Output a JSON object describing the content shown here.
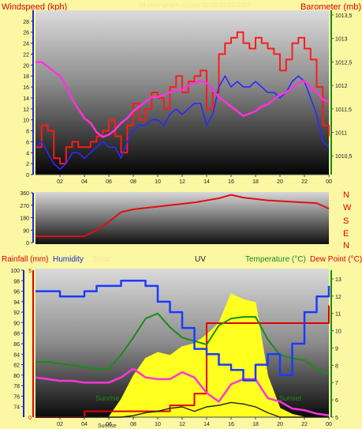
{
  "colors": {
    "background": "#fbf7a3",
    "wind": "#ff1a1a",
    "gust_avg": "#2a2aff",
    "pressure": "#ff33dd",
    "direction": "#e01010",
    "humidity": "#1a3aff",
    "rain": "#e00000",
    "solar": "#ffff20",
    "uv": "#202020",
    "temperature": "#1a8c1a",
    "dewpoint": "#ff33dd",
    "label_dark": "#e00000",
    "label_green": "#1a8c1a",
    "label_faint": "#f2e6a0"
  },
  "header": {
    "windspeed": "Windspeed (kph)",
    "title": "24 Hour graph update 10:00 11/05/2007",
    "barometer": "Barometer (mb)"
  },
  "labels2": {
    "rainfall": "Rainfall (mm)",
    "humidity": "Humidity",
    "solar": "Solar",
    "uv": "UV",
    "temperature": "Temperature (°C)",
    "dewpoint": "Dew Point (°C)",
    "sunrise": "Sunrise",
    "sunset": "Sunset"
  },
  "compass": [
    "N",
    "W",
    "S",
    "E",
    "N"
  ],
  "chart_data": [
    {
      "type": "line",
      "title": "24 Hour graph update 10:00 11/05/2007",
      "ylabel": "Windspeed (kph)",
      "ylabel_right": "Barometer (mb)",
      "xticks": [
        "02",
        "04",
        "06",
        "08",
        "10",
        "12",
        "14",
        "16",
        "18",
        "20",
        "22",
        "00"
      ],
      "ylim": [
        0,
        30
      ],
      "yticks": [
        0,
        2,
        4,
        6,
        8,
        10,
        12,
        14,
        16,
        18,
        20,
        22,
        24,
        26,
        28
      ],
      "ylim_right": [
        1010.1,
        1013.6
      ],
      "yticks_right": [
        1010.5,
        1011,
        1011.5,
        1012,
        1012.5,
        1013,
        1013.5
      ],
      "grid": false,
      "x_hours": [
        0,
        0.5,
        1,
        1.5,
        2,
        2.5,
        3,
        3.5,
        4,
        4.5,
        5,
        5.5,
        6,
        6.5,
        7,
        7.5,
        8,
        8.5,
        9,
        9.5,
        10,
        10.5,
        11,
        11.5,
        12,
        12.5,
        13,
        13.5,
        14,
        14.5,
        15,
        15.5,
        16,
        16.5,
        17,
        17.5,
        18,
        18.5,
        19,
        19.5,
        20,
        20.5,
        21,
        21.5,
        22,
        22.5,
        23,
        23.5,
        24
      ],
      "series": [
        {
          "values": [
            5,
            9,
            8,
            3,
            2,
            5,
            6,
            5,
            5,
            6,
            7,
            8,
            10,
            7,
            4,
            9,
            13,
            10,
            12,
            15,
            14,
            12,
            16,
            18,
            15,
            17,
            18,
            19,
            12,
            15,
            22,
            24,
            25,
            26,
            24,
            23,
            25,
            24,
            23,
            22,
            19,
            21,
            24,
            25,
            23,
            21,
            16,
            9,
            7
          ]
        },
        {
          "values": [
            5,
            6,
            4,
            2,
            1,
            2,
            4,
            4,
            3,
            4,
            5,
            6,
            5,
            5,
            3,
            6,
            8,
            9,
            9,
            10,
            10,
            9,
            11,
            12,
            11,
            12,
            13,
            13,
            9,
            11,
            16,
            18,
            16,
            17,
            16,
            16,
            17,
            16,
            15,
            15,
            14,
            15,
            17,
            18,
            17,
            14,
            11,
            6,
            5
          ]
        },
        {
          "values": [
            1012.5,
            1012.5,
            1012.4,
            1012.3,
            1012.2,
            1012.0,
            1011.7,
            1011.5,
            1011.3,
            1011.2,
            1011.0,
            1010.9,
            1010.95,
            1011.05,
            1011.2,
            1011.3,
            1011.45,
            1011.55,
            1011.65,
            1011.75,
            1011.75,
            1011.8,
            1011.85,
            1011.9,
            1011.9,
            1012.0,
            1012.05,
            1012.1,
            1012.05,
            1011.9,
            1011.75,
            1011.65,
            1011.55,
            1011.45,
            1011.35,
            1011.4,
            1011.45,
            1011.55,
            1011.6,
            1011.7,
            1011.8,
            1011.85,
            1011.95,
            1012.05,
            1012.1,
            1011.95,
            1011.85,
            1011.7,
            1011.65
          ]
        }
      ]
    },
    {
      "type": "line",
      "xticks": [
        "02",
        "04",
        "06",
        "08",
        "10",
        "12",
        "14",
        "16",
        "18",
        "20",
        "22",
        "00"
      ],
      "ylim": [
        0,
        360
      ],
      "yticks": [
        0,
        90,
        180,
        270,
        360
      ],
      "x_hours": [
        0,
        1,
        2,
        3,
        4,
        5,
        6,
        7,
        8,
        9,
        10,
        11,
        12,
        13,
        14,
        15,
        16,
        17,
        18,
        19,
        20,
        21,
        22,
        23,
        24
      ],
      "series": [
        {
          "values": [
            45,
            45,
            45,
            45,
            45,
            90,
            150,
            220,
            240,
            250,
            260,
            270,
            280,
            290,
            305,
            320,
            345,
            325,
            315,
            305,
            300,
            295,
            290,
            285,
            245
          ]
        }
      ]
    },
    {
      "type": "line",
      "xticks": [
        "02",
        "04",
        "06",
        "08",
        "10",
        "12",
        "14",
        "16",
        "18",
        "20",
        "22",
        "00"
      ],
      "ylabel": "Rainfall (mm)",
      "ylabel_right": "Temperature (°C)",
      "ylim_rain": [
        0,
        5
      ],
      "ylim_humidity": [
        72,
        100
      ],
      "yticks_humidity": [
        74,
        76,
        78,
        80,
        82,
        84,
        86,
        88,
        90,
        92,
        94,
        96,
        98,
        100
      ],
      "ylim_temp": [
        5,
        13.5
      ],
      "yticks_temp": [
        5,
        6,
        7,
        8,
        9,
        10,
        11,
        12,
        13
      ],
      "x_hours": [
        0,
        1,
        2,
        3,
        4,
        5,
        6,
        7,
        8,
        9,
        10,
        11,
        12,
        13,
        14,
        15,
        16,
        17,
        18,
        19,
        20,
        21,
        22,
        23,
        24
      ],
      "series": [
        {
          "values": [
            96,
            96,
            95,
            95,
            96,
            97,
            97,
            98,
            98,
            97,
            94,
            92,
            89,
            85,
            84,
            82,
            81,
            79,
            82,
            84,
            80,
            86,
            92,
            95,
            97
          ]
        },
        {
          "values": [
            0,
            0,
            0,
            0,
            0.2,
            0.2,
            0.2,
            0.2,
            0.2,
            0.2,
            0.2,
            0.4,
            0.4,
            0.8,
            3.2,
            3.2,
            3.2,
            3.2,
            3.2,
            3.2,
            3.2,
            3.2,
            3.2,
            3.2,
            3.8
          ]
        },
        {
          "values": [
            0,
            0,
            0,
            0,
            0,
            0,
            0,
            0.6,
            1.4,
            2.0,
            2.2,
            2.1,
            2.4,
            2.5,
            2.8,
            3.2,
            4.2,
            4.0,
            3.9,
            1.4,
            0.3,
            0.1,
            0,
            0,
            0
          ]
        },
        {
          "values": [
            0,
            0,
            0,
            0,
            0,
            0,
            0,
            0,
            0.05,
            0.15,
            0.2,
            0.3,
            0.35,
            0.2,
            0.35,
            0.4,
            0.5,
            0.45,
            0.35,
            0.15,
            0,
            0,
            0,
            0,
            0
          ]
        },
        {
          "values": [
            8.2,
            8.2,
            8.1,
            8.0,
            7.9,
            7.8,
            7.8,
            8.6,
            9.6,
            10.7,
            11.0,
            10.2,
            9.6,
            9.4,
            9.2,
            10.3,
            10.7,
            10.8,
            10.8,
            9.5,
            8.6,
            8.4,
            8.3,
            7.8,
            7.5
          ]
        },
        {
          "values": [
            7.3,
            7.2,
            7.1,
            7.1,
            7.0,
            7.0,
            7.0,
            7.3,
            7.8,
            7.3,
            7.2,
            7.2,
            7.6,
            7.3,
            6.4,
            5.9,
            6.9,
            7.2,
            7.2,
            6.1,
            5.9,
            5.5,
            5.4,
            5.2,
            5.1
          ]
        }
      ]
    }
  ]
}
